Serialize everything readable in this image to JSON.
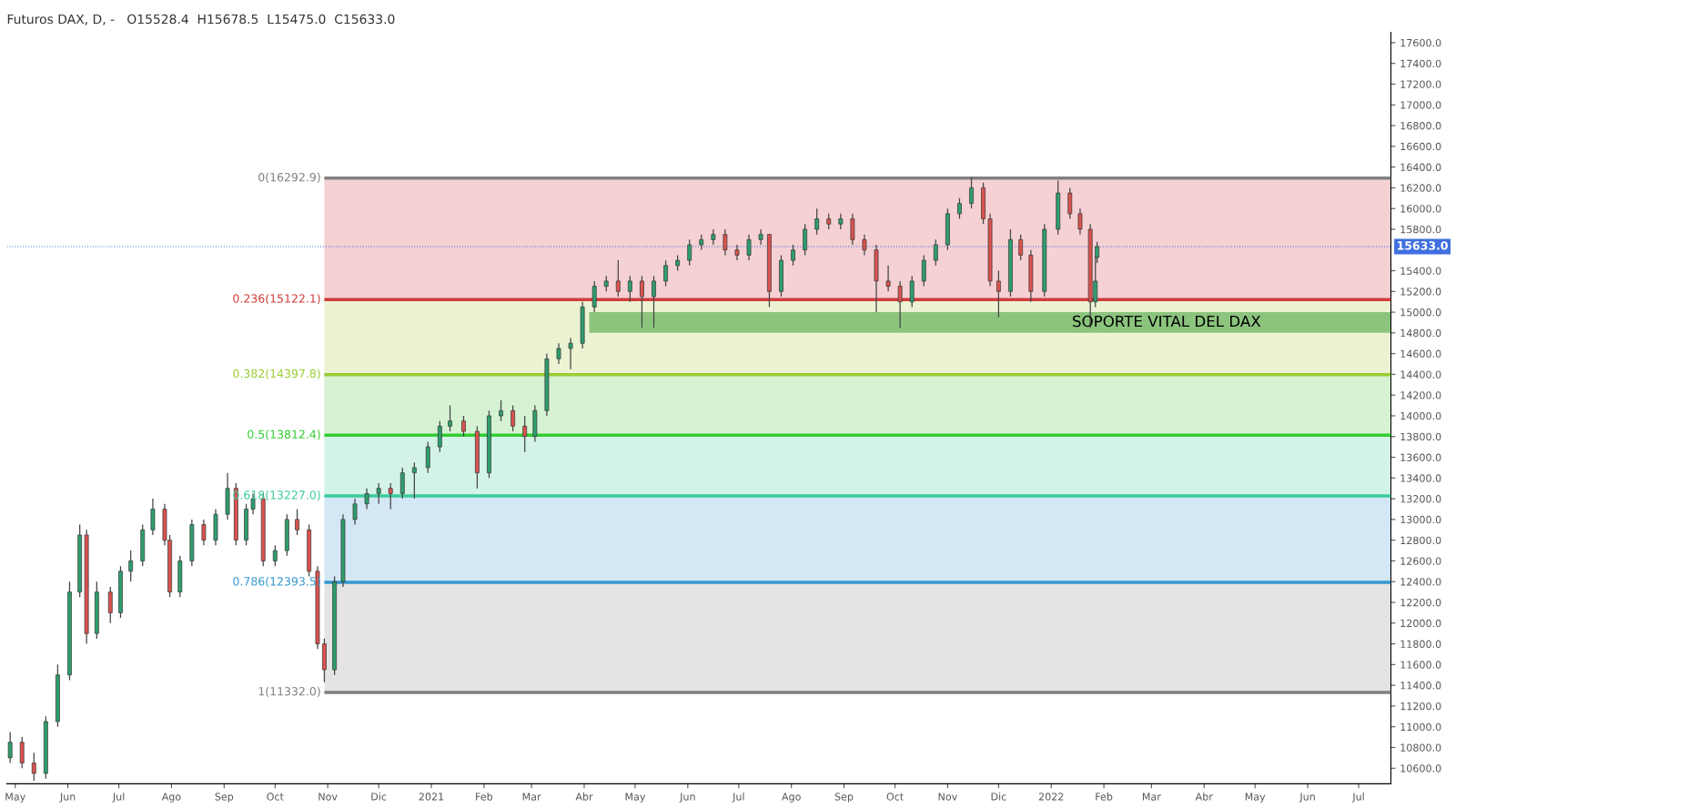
{
  "chart_data": {
    "type": "candlestick",
    "title": "Futuros DAX, D, -   O15528.4  H15678.5  L15475.0  C15633.0",
    "x": [
      "2020-04-28",
      "2020-05-05",
      "2020-05-12",
      "2020-05-19",
      "2020-05-26",
      "2020-06-02",
      "2020-06-08",
      "2020-06-12",
      "2020-06-18",
      "2020-06-26",
      "2020-07-02",
      "2020-07-08",
      "2020-07-15",
      "2020-07-21",
      "2020-07-28",
      "2020-07-31",
      "2020-08-06",
      "2020-08-13",
      "2020-08-20",
      "2020-08-27",
      "2020-09-03",
      "2020-09-08",
      "2020-09-14",
      "2020-09-18",
      "2020-09-24",
      "2020-10-01",
      "2020-10-08",
      "2020-10-14",
      "2020-10-21",
      "2020-10-26",
      "2020-10-30",
      "2020-11-05",
      "2020-11-10",
      "2020-11-17",
      "2020-11-24",
      "2020-12-01",
      "2020-12-08",
      "2020-12-15",
      "2020-12-22",
      "2020-12-30",
      "2021-01-06",
      "2021-01-12",
      "2021-01-20",
      "2021-01-28",
      "2021-02-04",
      "2021-02-11",
      "2021-02-18",
      "2021-02-25",
      "2021-03-03",
      "2021-03-10",
      "2021-03-17",
      "2021-03-24",
      "2021-03-31",
      "2021-04-07",
      "2021-04-14",
      "2021-04-21",
      "2021-04-28",
      "2021-05-05",
      "2021-05-12",
      "2021-05-19",
      "2021-05-26",
      "2021-06-02",
      "2021-06-09",
      "2021-06-16",
      "2021-06-23",
      "2021-06-30",
      "2021-07-07",
      "2021-07-14",
      "2021-07-19",
      "2021-07-26",
      "2021-08-02",
      "2021-08-09",
      "2021-08-16",
      "2021-08-23",
      "2021-08-30",
      "2021-09-06",
      "2021-09-13",
      "2021-09-20",
      "2021-09-27",
      "2021-10-04",
      "2021-10-11",
      "2021-10-18",
      "2021-10-25",
      "2021-11-01",
      "2021-11-08",
      "2021-11-15",
      "2021-11-22",
      "2021-11-26",
      "2021-12-01",
      "2021-12-08",
      "2021-12-14",
      "2021-12-20",
      "2021-12-28",
      "2022-01-05",
      "2022-01-12",
      "2022-01-18",
      "2022-01-24",
      "2022-01-27",
      "2022-01-28"
    ],
    "ohlc": [
      [
        10700,
        10950,
        10650,
        10850
      ],
      [
        10850,
        10900,
        10600,
        10650
      ],
      [
        10650,
        10750,
        10480,
        10550
      ],
      [
        10550,
        11100,
        10500,
        11050
      ],
      [
        11050,
        11600,
        11000,
        11500
      ],
      [
        11500,
        12400,
        11450,
        12300
      ],
      [
        12300,
        12950,
        12250,
        12850
      ],
      [
        12850,
        12900,
        11800,
        11900
      ],
      [
        11900,
        12400,
        11850,
        12300
      ],
      [
        12300,
        12350,
        12000,
        12100
      ],
      [
        12100,
        12550,
        12050,
        12500
      ],
      [
        12500,
        12700,
        12400,
        12600
      ],
      [
        12600,
        12950,
        12550,
        12900
      ],
      [
        12900,
        13200,
        12850,
        13100
      ],
      [
        13100,
        13150,
        12750,
        12800
      ],
      [
        12800,
        12850,
        12250,
        12300
      ],
      [
        12300,
        12650,
        12250,
        12600
      ],
      [
        12600,
        13000,
        12550,
        12950
      ],
      [
        12950,
        13000,
        12750,
        12800
      ],
      [
        12800,
        13100,
        12750,
        13050
      ],
      [
        13050,
        13450,
        13000,
        13300
      ],
      [
        13300,
        13350,
        12750,
        12800
      ],
      [
        12800,
        13150,
        12750,
        13100
      ],
      [
        13100,
        13250,
        13050,
        13200
      ],
      [
        13200,
        13250,
        12550,
        12600
      ],
      [
        12600,
        12750,
        12550,
        12700
      ],
      [
        12700,
        13050,
        12650,
        13000
      ],
      [
        13000,
        13100,
        12850,
        12900
      ],
      [
        12900,
        12950,
        12450,
        12500
      ],
      [
        12500,
        12550,
        11750,
        11800
      ],
      [
        11800,
        11850,
        11430,
        11550
      ],
      [
        11550,
        12450,
        11500,
        12400
      ],
      [
        12400,
        13050,
        12350,
        13000
      ],
      [
        13000,
        13200,
        12950,
        13150
      ],
      [
        13150,
        13300,
        13100,
        13250
      ],
      [
        13250,
        13350,
        13150,
        13300
      ],
      [
        13300,
        13350,
        13100,
        13250
      ],
      [
        13250,
        13500,
        13200,
        13450
      ],
      [
        13450,
        13550,
        13200,
        13500
      ],
      [
        13500,
        13750,
        13450,
        13700
      ],
      [
        13700,
        13950,
        13650,
        13900
      ],
      [
        13900,
        14100,
        13850,
        13950
      ],
      [
        13950,
        14000,
        13800,
        13850
      ],
      [
        13850,
        13900,
        13300,
        13450
      ],
      [
        13450,
        14050,
        13400,
        14000
      ],
      [
        14000,
        14150,
        13950,
        14050
      ],
      [
        14050,
        14100,
        13850,
        13900
      ],
      [
        13900,
        14000,
        13650,
        13800
      ],
      [
        13800,
        14100,
        13750,
        14050
      ],
      [
        14050,
        14600,
        14000,
        14550
      ],
      [
        14550,
        14700,
        14500,
        14650
      ],
      [
        14650,
        14750,
        14450,
        14700
      ],
      [
        14700,
        15100,
        14650,
        15050
      ],
      [
        15050,
        15300,
        15000,
        15250
      ],
      [
        15250,
        15350,
        15200,
        15300
      ],
      [
        15300,
        15500,
        15150,
        15200
      ],
      [
        15200,
        15350,
        15100,
        15300
      ],
      [
        15300,
        15350,
        14850,
        15150
      ],
      [
        15150,
        15350,
        14850,
        15300
      ],
      [
        15300,
        15500,
        15250,
        15450
      ],
      [
        15450,
        15550,
        15400,
        15500
      ],
      [
        15500,
        15700,
        15450,
        15650
      ],
      [
        15650,
        15750,
        15600,
        15700
      ],
      [
        15700,
        15800,
        15650,
        15750
      ],
      [
        15750,
        15800,
        15550,
        15600
      ],
      [
        15600,
        15650,
        15500,
        15550
      ],
      [
        15550,
        15750,
        15500,
        15700
      ],
      [
        15700,
        15800,
        15650,
        15750
      ],
      [
        15750,
        15750,
        15050,
        15200
      ],
      [
        15200,
        15550,
        15150,
        15500
      ],
      [
        15500,
        15650,
        15450,
        15600
      ],
      [
        15600,
        15850,
        15550,
        15800
      ],
      [
        15800,
        16000,
        15750,
        15900
      ],
      [
        15900,
        15950,
        15800,
        15850
      ],
      [
        15850,
        15950,
        15800,
        15900
      ],
      [
        15900,
        15950,
        15650,
        15700
      ],
      [
        15700,
        15750,
        15550,
        15600
      ],
      [
        15600,
        15650,
        15000,
        15300
      ],
      [
        15300,
        15450,
        15200,
        15250
      ],
      [
        15250,
        15300,
        14850,
        15100
      ],
      [
        15100,
        15350,
        15050,
        15300
      ],
      [
        15300,
        15550,
        15250,
        15500
      ],
      [
        15500,
        15700,
        15450,
        15650
      ],
      [
        15650,
        16000,
        15600,
        15950
      ],
      [
        15950,
        16100,
        15900,
        16050
      ],
      [
        16050,
        16300,
        16000,
        16200
      ],
      [
        16200,
        16250,
        15850,
        15900
      ],
      [
        15900,
        15950,
        15250,
        15300
      ],
      [
        15300,
        15400,
        14950,
        15200
      ],
      [
        15200,
        15800,
        15150,
        15700
      ],
      [
        15700,
        15750,
        15500,
        15550
      ],
      [
        15550,
        15600,
        15100,
        15200
      ],
      [
        15200,
        15850,
        15150,
        15800
      ],
      [
        15800,
        16270,
        15750,
        16150
      ],
      [
        16150,
        16200,
        15900,
        15950
      ],
      [
        15950,
        16000,
        15750,
        15800
      ],
      [
        15800,
        15850,
        14850,
        15100
      ],
      [
        15100,
        15550,
        15050,
        15300
      ],
      [
        15528.4,
        15678.5,
        15475.0,
        15633.0
      ]
    ],
    "xlim": [
      "2020-04-26",
      "2022-07-20"
    ],
    "xticks": [
      {
        "value": "2020-05-01",
        "label": "May"
      },
      {
        "value": "2020-06-01",
        "label": "Jun"
      },
      {
        "value": "2020-07-01",
        "label": "Jul"
      },
      {
        "value": "2020-08-01",
        "label": "Ago"
      },
      {
        "value": "2020-09-01",
        "label": "Sep"
      },
      {
        "value": "2020-10-01",
        "label": "Oct"
      },
      {
        "value": "2020-11-01",
        "label": "Nov"
      },
      {
        "value": "2020-12-01",
        "label": "Dic"
      },
      {
        "value": "2021-01-01",
        "label": "2021"
      },
      {
        "value": "2021-02-01",
        "label": "Feb"
      },
      {
        "value": "2021-03-01",
        "label": "Mar"
      },
      {
        "value": "2021-04-01",
        "label": "Abr"
      },
      {
        "value": "2021-05-01",
        "label": "May"
      },
      {
        "value": "2021-06-01",
        "label": "Jun"
      },
      {
        "value": "2021-07-01",
        "label": "Jul"
      },
      {
        "value": "2021-08-01",
        "label": "Ago"
      },
      {
        "value": "2021-09-01",
        "label": "Sep"
      },
      {
        "value": "2021-10-01",
        "label": "Oct"
      },
      {
        "value": "2021-11-01",
        "label": "Nov"
      },
      {
        "value": "2021-12-01",
        "label": "Dic"
      },
      {
        "value": "2022-01-01",
        "label": "2022"
      },
      {
        "value": "2022-02-01",
        "label": "Feb"
      },
      {
        "value": "2022-03-01",
        "label": "Mar"
      },
      {
        "value": "2022-04-01",
        "label": "Abr"
      },
      {
        "value": "2022-05-01",
        "label": "May"
      },
      {
        "value": "2022-06-01",
        "label": "Jun"
      },
      {
        "value": "2022-07-01",
        "label": "Jul"
      }
    ],
    "ylim": [
      10450,
      17700
    ],
    "yticks": [
      {
        "value": 10600,
        "label": "10600.0"
      },
      {
        "value": 10800,
        "label": "10800.0"
      },
      {
        "value": 11000,
        "label": "11000.0"
      },
      {
        "value": 11200,
        "label": "11200.0"
      },
      {
        "value": 11400,
        "label": "11400.0"
      },
      {
        "value": 11600,
        "label": "11600.0"
      },
      {
        "value": 11800,
        "label": "11800.0"
      },
      {
        "value": 12000,
        "label": "12000.0"
      },
      {
        "value": 12200,
        "label": "12200.0"
      },
      {
        "value": 12400,
        "label": "12400.0"
      },
      {
        "value": 12600,
        "label": "12600.0"
      },
      {
        "value": 12800,
        "label": "12800.0"
      },
      {
        "value": 13000,
        "label": "13000.0"
      },
      {
        "value": 13200,
        "label": "13200.0"
      },
      {
        "value": 13400,
        "label": "13400.0"
      },
      {
        "value": 13600,
        "label": "13600.0"
      },
      {
        "value": 13800,
        "label": "13800.0"
      },
      {
        "value": 14000,
        "label": "14000.0"
      },
      {
        "value": 14200,
        "label": "14200.0"
      },
      {
        "value": 14400,
        "label": "14400.0"
      },
      {
        "value": 14600,
        "label": "14600.0"
      },
      {
        "value": 14800,
        "label": "14800.0"
      },
      {
        "value": 15000,
        "label": "15000.0"
      },
      {
        "value": 15200,
        "label": "15200.0"
      },
      {
        "value": 15400,
        "label": "15400.0"
      },
      {
        "value": 15800,
        "label": "15800.0"
      },
      {
        "value": 16000,
        "label": "16000.0"
      },
      {
        "value": 16200,
        "label": "16200.0"
      },
      {
        "value": 16400,
        "label": "16400.0"
      },
      {
        "value": 16600,
        "label": "16600.0"
      },
      {
        "value": 16800,
        "label": "16800.0"
      },
      {
        "value": 17000,
        "label": "17000.0"
      },
      {
        "value": 17200,
        "label": "17200.0"
      },
      {
        "value": 17400,
        "label": "17400.0"
      },
      {
        "value": 17600,
        "label": "17600.0"
      }
    ],
    "bands": [
      {
        "axis": "y",
        "from": 15122.1,
        "to": 16292.9,
        "label": null,
        "color": "#f5d1d4"
      },
      {
        "axis": "y",
        "from": 14397.8,
        "to": 15122.1,
        "label": null,
        "color": "#ebf3d3"
      },
      {
        "axis": "y",
        "from": 13812.4,
        "to": 14397.8,
        "label": null,
        "color": "#d5f2d2"
      },
      {
        "axis": "y",
        "from": 13227.0,
        "to": 13812.4,
        "label": null,
        "color": "#d3f3e7"
      },
      {
        "axis": "y",
        "from": 12393.5,
        "to": 13227.0,
        "label": null,
        "color": "#d3e7f4"
      },
      {
        "axis": "y",
        "from": 11332.0,
        "to": 12393.5,
        "label": null,
        "color": "#e4e4e4"
      },
      {
        "axis": "y",
        "from": 14800,
        "to": 15000,
        "label": "SOPORTE VITAL DEL DAX",
        "color": "#8cc47e"
      }
    ],
    "ref_lines": [
      {
        "axis": "y",
        "value": 16292.9,
        "label": "0(16292.9)",
        "color": "#808080"
      },
      {
        "axis": "y",
        "value": 15122.1,
        "label": "0.236(15122.1)",
        "color": "#d23b3b"
      },
      {
        "axis": "y",
        "value": 14397.8,
        "label": "0.382(14397.8)",
        "color": "#9acd32"
      },
      {
        "axis": "y",
        "value": 13812.4,
        "label": "0.5(13812.4)",
        "color": "#32cd32"
      },
      {
        "axis": "y",
        "value": 13227.0,
        "label": "0.618(13227.0)",
        "color": "#3ccb9e"
      },
      {
        "axis": "y",
        "value": 12393.5,
        "label": "0.786(12393.5)",
        "color": "#3598cf"
      },
      {
        "axis": "y",
        "value": 11332.0,
        "label": "1(11332.0)",
        "color": "#808080"
      },
      {
        "axis": "y",
        "value": 15633.0,
        "label": "15633.0",
        "color": "#3f6fe0",
        "line_style": "dotted"
      }
    ],
    "grid": false
  }
}
